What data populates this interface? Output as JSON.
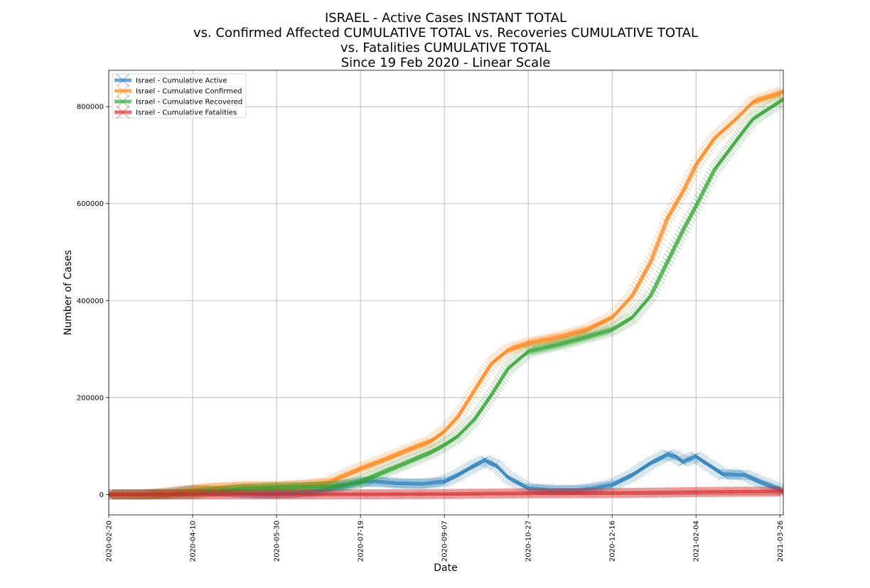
{
  "chart_data": {
    "type": "line",
    "title_lines": [
      "ISRAEL - Active Cases INSTANT TOTAL",
      "vs. Confirmed Affected CUMULATIVE TOTAL vs. Recoveries CUMULATIVE TOTAL",
      "vs. Fatalities CUMULATIVE TOTAL",
      "Since 19 Feb 2020 - Linear Scale"
    ],
    "xlabel": "Date",
    "ylabel": "Number of Cases",
    "xlim": [
      "2020-02-20",
      "2021-03-28"
    ],
    "ylim": [
      -42000,
      875000
    ],
    "x_ticks": [
      "2020-02-20",
      "2020-04-10",
      "2020-05-30",
      "2020-07-19",
      "2020-09-07",
      "2020-10-27",
      "2020-12-16",
      "2021-02-04",
      "2021-03-26"
    ],
    "y_ticks": [
      0,
      200000,
      400000,
      600000,
      800000
    ],
    "grid": true,
    "legend_position": "top-left",
    "marker": "x",
    "series": [
      {
        "name": "Israel - Cumulative Active",
        "color": "#1f77b4",
        "points": [
          [
            "2020-02-20",
            0
          ],
          [
            "2020-03-10",
            100
          ],
          [
            "2020-03-25",
            2500
          ],
          [
            "2020-04-05",
            7000
          ],
          [
            "2020-04-15",
            9000
          ],
          [
            "2020-04-25",
            7000
          ],
          [
            "2020-05-05",
            4000
          ],
          [
            "2020-05-15",
            2500
          ],
          [
            "2020-05-30",
            2000
          ],
          [
            "2020-06-10",
            3000
          ],
          [
            "2020-06-25",
            8000
          ],
          [
            "2020-07-10",
            19000
          ],
          [
            "2020-07-19",
            26000
          ],
          [
            "2020-07-28",
            27000
          ],
          [
            "2020-08-10",
            23000
          ],
          [
            "2020-08-25",
            22000
          ],
          [
            "2020-09-07",
            27000
          ],
          [
            "2020-09-15",
            40000
          ],
          [
            "2020-09-25",
            60000
          ],
          [
            "2020-10-01",
            70000
          ],
          [
            "2020-10-08",
            60000
          ],
          [
            "2020-10-15",
            35000
          ],
          [
            "2020-10-27",
            13000
          ],
          [
            "2020-11-10",
            9000
          ],
          [
            "2020-11-25",
            9000
          ],
          [
            "2020-12-05",
            13000
          ],
          [
            "2020-12-16",
            20000
          ],
          [
            "2020-12-28",
            40000
          ],
          [
            "2021-01-08",
            65000
          ],
          [
            "2021-01-18",
            82000
          ],
          [
            "2021-01-23",
            78000
          ],
          [
            "2021-01-27",
            68000
          ],
          [
            "2021-02-04",
            78000
          ],
          [
            "2021-02-12",
            60000
          ],
          [
            "2021-02-20",
            42000
          ],
          [
            "2021-03-05",
            40000
          ],
          [
            "2021-03-15",
            25000
          ],
          [
            "2021-03-28",
            8000
          ]
        ]
      },
      {
        "name": "Israel - Cumulative Confirmed",
        "color": "#ff7f0e",
        "points": [
          [
            "2020-02-20",
            0
          ],
          [
            "2020-03-10",
            100
          ],
          [
            "2020-03-25",
            2500
          ],
          [
            "2020-04-05",
            8000
          ],
          [
            "2020-04-20",
            13500
          ],
          [
            "2020-05-10",
            16500
          ],
          [
            "2020-05-30",
            17000
          ],
          [
            "2020-06-15",
            19500
          ],
          [
            "2020-06-30",
            25000
          ],
          [
            "2020-07-10",
            40000
          ],
          [
            "2020-07-19",
            53000
          ],
          [
            "2020-08-01",
            70000
          ],
          [
            "2020-08-15",
            90000
          ],
          [
            "2020-08-30",
            110000
          ],
          [
            "2020-09-07",
            130000
          ],
          [
            "2020-09-15",
            160000
          ],
          [
            "2020-09-25",
            215000
          ],
          [
            "2020-10-05",
            270000
          ],
          [
            "2020-10-15",
            298000
          ],
          [
            "2020-10-27",
            312000
          ],
          [
            "2020-11-15",
            325000
          ],
          [
            "2020-12-01",
            340000
          ],
          [
            "2020-12-16",
            365000
          ],
          [
            "2020-12-28",
            410000
          ],
          [
            "2021-01-08",
            480000
          ],
          [
            "2021-01-18",
            570000
          ],
          [
            "2021-01-28",
            630000
          ],
          [
            "2021-02-04",
            680000
          ],
          [
            "2021-02-15",
            735000
          ],
          [
            "2021-02-28",
            775000
          ],
          [
            "2021-03-10",
            810000
          ],
          [
            "2021-03-28",
            830000
          ]
        ]
      },
      {
        "name": "Israel - Cumulative Recovered",
        "color": "#2ca02c",
        "points": [
          [
            "2020-02-20",
            0
          ],
          [
            "2020-03-25",
            100
          ],
          [
            "2020-04-10",
            1500
          ],
          [
            "2020-04-25",
            7000
          ],
          [
            "2020-05-10",
            12000
          ],
          [
            "2020-05-30",
            14500
          ],
          [
            "2020-06-15",
            15500
          ],
          [
            "2020-06-30",
            16500
          ],
          [
            "2020-07-10",
            20000
          ],
          [
            "2020-07-19",
            26000
          ],
          [
            "2020-08-01",
            45000
          ],
          [
            "2020-08-15",
            65000
          ],
          [
            "2020-08-30",
            87000
          ],
          [
            "2020-09-07",
            102000
          ],
          [
            "2020-09-15",
            120000
          ],
          [
            "2020-09-25",
            155000
          ],
          [
            "2020-10-05",
            205000
          ],
          [
            "2020-10-15",
            260000
          ],
          [
            "2020-10-27",
            295000
          ],
          [
            "2020-11-15",
            310000
          ],
          [
            "2020-12-01",
            325000
          ],
          [
            "2020-12-16",
            340000
          ],
          [
            "2020-12-28",
            365000
          ],
          [
            "2021-01-08",
            410000
          ],
          [
            "2021-01-18",
            480000
          ],
          [
            "2021-01-28",
            550000
          ],
          [
            "2021-02-04",
            595000
          ],
          [
            "2021-02-15",
            670000
          ],
          [
            "2021-02-28",
            730000
          ],
          [
            "2021-03-10",
            775000
          ],
          [
            "2021-03-28",
            815000
          ]
        ]
      },
      {
        "name": "Israel - Cumulative Fatalities",
        "color": "#d62728",
        "points": [
          [
            "2020-02-20",
            0
          ],
          [
            "2020-04-10",
            90
          ],
          [
            "2020-05-30",
            285
          ],
          [
            "2020-07-19",
            420
          ],
          [
            "2020-09-07",
            1000
          ],
          [
            "2020-10-27",
            2500
          ],
          [
            "2020-12-16",
            3000
          ],
          [
            "2021-01-15",
            4000
          ],
          [
            "2021-02-04",
            5000
          ],
          [
            "2021-03-01",
            5700
          ],
          [
            "2021-03-28",
            6200
          ]
        ]
      }
    ]
  }
}
